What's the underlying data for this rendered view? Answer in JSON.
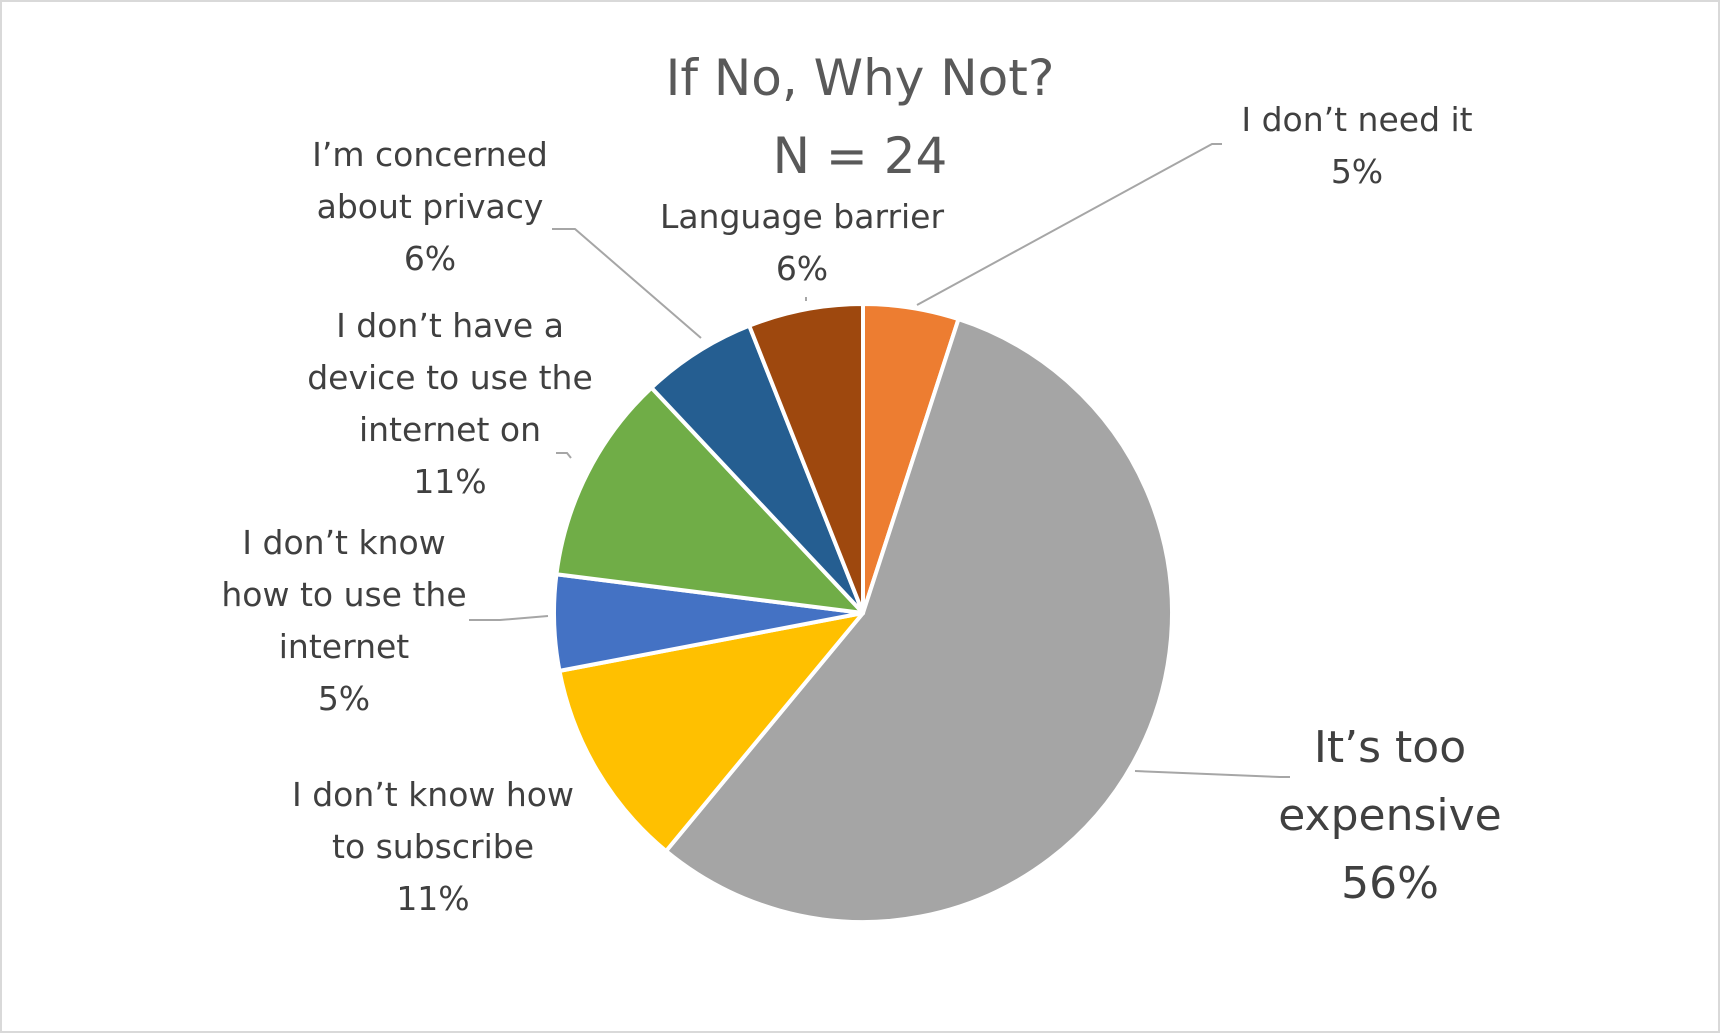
{
  "chart_data": {
    "type": "pie",
    "title": "If No, Why Not?",
    "subtitle": "N = 24",
    "slices": [
      {
        "label_lines": [
          "I don’t need it"
        ],
        "value_label": "5%",
        "value": 5,
        "color": "#ED7D31"
      },
      {
        "label_lines": [
          "It’s too",
          "expensive"
        ],
        "value_label": "56%",
        "value": 56,
        "color": "#A5A5A5"
      },
      {
        "label_lines": [
          "I don’t know how",
          "to subscribe"
        ],
        "value_label": "11%",
        "value": 11,
        "color": "#FFC000"
      },
      {
        "label_lines": [
          "I don’t know",
          "how to use the",
          "internet"
        ],
        "value_label": "5%",
        "value": 5,
        "color": "#4472C4"
      },
      {
        "label_lines": [
          "I don’t have a",
          "device to use the",
          "internet on"
        ],
        "value_label": "11%",
        "value": 11,
        "color": "#70AD47"
      },
      {
        "label_lines": [
          "I’m concerned",
          "about privacy"
        ],
        "value_label": "6%",
        "value": 6,
        "color": "#255E91"
      },
      {
        "label_lines": [
          "Language barrier"
        ],
        "value_label": "6%",
        "value": 6,
        "color": "#9E480E"
      }
    ],
    "legend": "none"
  }
}
